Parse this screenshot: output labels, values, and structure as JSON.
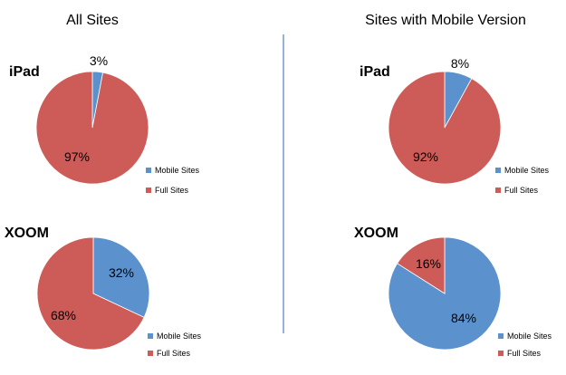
{
  "columns": {
    "left_title": "All Sites",
    "right_title": "Sites with Mobile Version"
  },
  "legend": {
    "mobile_label": "Mobile Sites",
    "full_label": "Full Sites"
  },
  "colors": {
    "mobile": "#5B92CD",
    "full": "#CD5B57",
    "divider": "#4F81BD"
  },
  "chart_data": [
    {
      "type": "pie",
      "group": "All Sites",
      "device": "iPad",
      "slices": [
        {
          "name": "Mobile Sites",
          "value": 3,
          "label": "3%"
        },
        {
          "name": "Full Sites",
          "value": 97,
          "label": "97%"
        }
      ]
    },
    {
      "type": "pie",
      "group": "Sites with Mobile Version",
      "device": "iPad",
      "slices": [
        {
          "name": "Mobile Sites",
          "value": 8,
          "label": "8%"
        },
        {
          "name": "Full Sites",
          "value": 92,
          "label": "92%"
        }
      ]
    },
    {
      "type": "pie",
      "group": "All Sites",
      "device": "XOOM",
      "slices": [
        {
          "name": "Mobile Sites",
          "value": 32,
          "label": "32%"
        },
        {
          "name": "Full Sites",
          "value": 68,
          "label": "68%"
        }
      ]
    },
    {
      "type": "pie",
      "group": "Sites with Mobile Version",
      "device": "XOOM",
      "slices": [
        {
          "name": "Mobile Sites",
          "value": 84,
          "label": "84%"
        },
        {
          "name": "Full Sites",
          "value": 16,
          "label": "16%"
        }
      ]
    }
  ]
}
